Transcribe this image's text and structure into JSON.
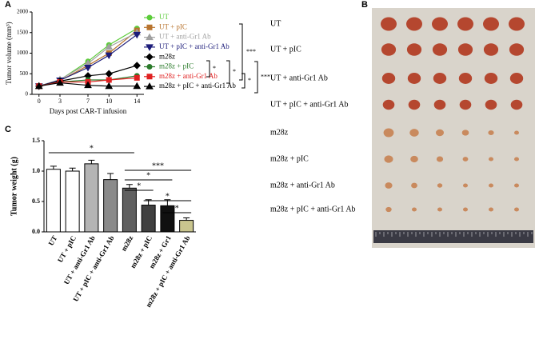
{
  "chart_data": [
    {
      "type": "line",
      "panel": "A",
      "ylabel": "Tumor volume (mm³)",
      "xlabel": "Days post CAR-T infusion",
      "x": [
        0,
        3,
        7,
        10,
        14
      ],
      "xlim": [
        -1,
        15
      ],
      "xticks": [
        0,
        3,
        7,
        10,
        14
      ],
      "ylim": [
        0,
        2000
      ],
      "yticks": [
        0,
        500,
        1000,
        1500,
        2000
      ],
      "series": [
        {
          "name": "UT",
          "color": "#5ccc3a",
          "marker": "circle",
          "values": [
            200,
            350,
            800,
            1200,
            1600
          ]
        },
        {
          "name": "UT + pIC",
          "color": "#b8742e",
          "marker": "square",
          "values": [
            200,
            330,
            700,
            1000,
            1550
          ]
        },
        {
          "name": "UT + anti-Gr1 Ab",
          "color": "#a0a0a0",
          "marker": "triangle",
          "values": [
            200,
            360,
            750,
            1150,
            1500
          ]
        },
        {
          "name": "UT + pIC + anti-Gr1 Ab",
          "color": "#1c1c7a",
          "marker": "triangle-down",
          "values": [
            200,
            340,
            650,
            950,
            1450
          ]
        },
        {
          "name": "m28z",
          "color": "#000000",
          "marker": "diamond",
          "values": [
            200,
            320,
            450,
            500,
            700
          ]
        },
        {
          "name": "m28z + pIC",
          "color": "#2a7a2a",
          "marker": "circle",
          "values": [
            200,
            300,
            350,
            350,
            450
          ]
        },
        {
          "name": "m28z + anti-Gr1 Ab",
          "color": "#e02020",
          "marker": "square",
          "values": [
            200,
            300,
            300,
            350,
            400
          ]
        },
        {
          "name": "m28z + pIC + anti-Gr1 Ab",
          "color": "#000000",
          "marker": "triangle",
          "values": [
            200,
            280,
            220,
            200,
            200
          ]
        }
      ],
      "annotations": [
        "***",
        "*",
        "*",
        "*",
        "***"
      ]
    },
    {
      "type": "image",
      "panel": "B",
      "row_labels": [
        "UT",
        "UT + pIC",
        "UT + anti-Gr1 Ab",
        "UT + pIC + anti-Gr1 Ab",
        "m28z",
        "m28z + pIC",
        "m28z + anti-Gr1 Ab",
        "m28z + pIC + anti-Gr1 Ab"
      ]
    },
    {
      "type": "bar",
      "panel": "C",
      "ylabel": "Tumor weight (g)",
      "categories": [
        "UT",
        "UT + pIC",
        "UT + anti-Gr1 Ab",
        "UT + pIC + anti-Gr1 Ab",
        "m28z",
        "m28z + pIC",
        "m28z + Gr1",
        "m28z + pIC + anti-Gr1 Ab"
      ],
      "values": [
        1.03,
        1.0,
        1.12,
        0.86,
        0.72,
        0.44,
        0.43,
        0.19
      ],
      "errors": [
        0.05,
        0.05,
        0.06,
        0.1,
        0.06,
        0.09,
        0.1,
        0.04
      ],
      "colors": [
        "#ffffff",
        "#ffffff",
        "#b4b4b4",
        "#8a8a8a",
        "#606060",
        "#404040",
        "#101010",
        "#c9c58e"
      ],
      "ylim": [
        0,
        1.5
      ],
      "yticks": [
        {
          "value": 0,
          "label": "0.0"
        },
        {
          "value": 0.5,
          "label": "0.5"
        },
        {
          "value": 1,
          "label": "1.0"
        },
        {
          "value": 1.5,
          "label": "1.5"
        }
      ],
      "annotations": [
        "*",
        "***",
        "*",
        "*",
        "*",
        "*"
      ]
    }
  ]
}
